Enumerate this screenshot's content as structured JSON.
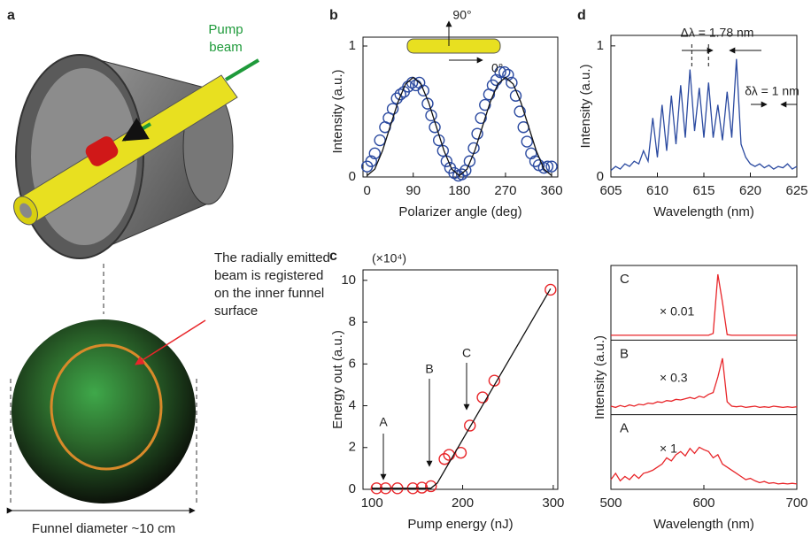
{
  "illustration": {
    "label": "a",
    "pump": "Pump",
    "beam": "beam",
    "note": [
      "The radially emitted",
      "beam is registered",
      "on the inner funnel",
      "surface"
    ],
    "diameter": "Funnel diameter ~10 cm"
  },
  "chart_data": [
    {
      "label": "b",
      "type": "scatter",
      "xlabel": "Polarizer angle (deg)",
      "ylabel": "Intensity (a.u.)",
      "xlim": [
        -8,
        372
      ],
      "ylim": [
        0,
        1
      ],
      "xticks": [
        0,
        90,
        180,
        270,
        360
      ],
      "yticks": [
        0,
        1
      ],
      "annotations": [
        "90°",
        "0°"
      ],
      "series": [
        {
          "mode": "markers",
          "color": "#2b4aa0",
          "x": [
            0,
            8,
            15,
            25,
            35,
            42,
            50,
            58,
            65,
            72,
            80,
            88,
            95,
            102,
            110,
            118,
            125,
            132,
            140,
            148,
            155,
            162,
            170,
            178,
            185,
            192,
            200,
            208,
            215,
            222,
            230,
            238,
            245,
            252,
            260,
            268,
            275,
            282,
            290,
            298,
            305,
            312,
            320,
            328,
            335,
            345,
            352,
            360
          ],
          "values": [
            0.08,
            0.12,
            0.18,
            0.28,
            0.38,
            0.45,
            0.52,
            0.6,
            0.63,
            0.65,
            0.69,
            0.72,
            0.7,
            0.72,
            0.66,
            0.56,
            0.47,
            0.38,
            0.28,
            0.2,
            0.12,
            0.07,
            0.03,
            0.01,
            0.02,
            0.05,
            0.12,
            0.22,
            0.33,
            0.45,
            0.55,
            0.63,
            0.7,
            0.74,
            0.8,
            0.8,
            0.78,
            0.72,
            0.62,
            0.5,
            0.38,
            0.27,
            0.18,
            0.12,
            0.09,
            0.07,
            0.08,
            0.08
          ]
        },
        {
          "mode": "lines",
          "color": "#111",
          "x": [
            0,
            15,
            30,
            45,
            60,
            75,
            90,
            105,
            120,
            135,
            150,
            165,
            180,
            195,
            210,
            225,
            240,
            255,
            270,
            285,
            300,
            315,
            330,
            345,
            360
          ],
          "values": [
            0.01,
            0.06,
            0.2,
            0.385,
            0.57,
            0.71,
            0.76,
            0.71,
            0.57,
            0.385,
            0.2,
            0.06,
            0.01,
            0.06,
            0.2,
            0.385,
            0.57,
            0.71,
            0.76,
            0.71,
            0.57,
            0.385,
            0.2,
            0.06,
            0.01
          ]
        }
      ]
    },
    {
      "label": "d",
      "type": "line",
      "xlabel": "Wavelength (nm)",
      "ylabel": "Intensity (a.u.)",
      "xlim": [
        605,
        625
      ],
      "ylim": [
        0,
        1.08
      ],
      "xticks": [
        605,
        610,
        615,
        620,
        625
      ],
      "yticks": [
        0,
        1
      ],
      "annotations": [
        "Δλ = 1.78 nm",
        "δλ = 1 nm"
      ],
      "series": [
        {
          "mode": "lines",
          "color": "#2b4aa0",
          "x": [
            605,
            605.5,
            606,
            606.5,
            607,
            607.5,
            608,
            608.5,
            609,
            609.5,
            610,
            610.5,
            611,
            611.5,
            612,
            612.5,
            613,
            613.5,
            614,
            614.5,
            615,
            615.5,
            616,
            616.5,
            617,
            617.5,
            618,
            618.5,
            619,
            619.5,
            620,
            620.5,
            621,
            621.5,
            622,
            622.5,
            623,
            623.5,
            624,
            624.5,
            625
          ],
          "values": [
            0.05,
            0.08,
            0.06,
            0.1,
            0.08,
            0.12,
            0.1,
            0.2,
            0.12,
            0.45,
            0.15,
            0.55,
            0.2,
            0.62,
            0.25,
            0.7,
            0.3,
            0.82,
            0.35,
            0.68,
            0.3,
            0.72,
            0.3,
            0.55,
            0.28,
            0.65,
            0.3,
            0.9,
            0.25,
            0.15,
            0.1,
            0.08,
            0.1,
            0.07,
            0.09,
            0.06,
            0.08,
            0.07,
            0.1,
            0.06,
            0.08
          ]
        }
      ]
    },
    {
      "label": "c",
      "type": "scatter",
      "xlabel": "Pump energy (nJ)",
      "ylabel": "Energy out (a.u.)",
      "xlim": [
        90,
        305
      ],
      "ylim": [
        0,
        10.5
      ],
      "xticks": [
        100,
        200,
        300
      ],
      "yticks": [
        0,
        2,
        4,
        6,
        8,
        10
      ],
      "annotations": [
        "(×10⁴)",
        "A",
        "B",
        "C"
      ],
      "series": [
        {
          "mode": "markers",
          "color": "#e8262a",
          "x": [
            105,
            115,
            128,
            145,
            155,
            165,
            180,
            185,
            198,
            208,
            222,
            235,
            297
          ],
          "values": [
            0.05,
            0.05,
            0.05,
            0.05,
            0.08,
            0.15,
            1.45,
            1.65,
            1.75,
            3.05,
            4.4,
            5.2,
            9.55
          ]
        },
        {
          "mode": "lines",
          "color": "#111",
          "x": [
            100,
            165,
            172,
            297
          ],
          "values": [
            0.05,
            0.05,
            0.3,
            9.6
          ]
        }
      ]
    },
    {
      "type": "line",
      "xlabel": "Wavelength (nm)",
      "ylabel": "Intensity (a.u.)",
      "xlim": [
        500,
        700
      ],
      "ylim": [
        0,
        1
      ],
      "xticks": [
        500,
        600,
        700
      ],
      "annotations": [
        "× 0.01",
        "× 0.3",
        "× 1"
      ],
      "series": [
        {
          "name": "C",
          "mode": "lines",
          "color": "#e8262a",
          "x": [
            500,
            505,
            510,
            515,
            520,
            525,
            530,
            535,
            540,
            545,
            550,
            555,
            560,
            565,
            570,
            575,
            580,
            585,
            590,
            595,
            600,
            605,
            610,
            615,
            620,
            625,
            630,
            635,
            640,
            645,
            650,
            655,
            660,
            665,
            670,
            675,
            680,
            685,
            690,
            695,
            700
          ],
          "values": [
            0.02,
            0.02,
            0.02,
            0.02,
            0.02,
            0.02,
            0.02,
            0.02,
            0.02,
            0.02,
            0.02,
            0.02,
            0.02,
            0.02,
            0.02,
            0.02,
            0.02,
            0.02,
            0.02,
            0.02,
            0.02,
            0.02,
            0.05,
            1.0,
            0.55,
            0.03,
            0.02,
            0.02,
            0.02,
            0.02,
            0.02,
            0.02,
            0.02,
            0.02,
            0.02,
            0.02,
            0.02,
            0.02,
            0.02,
            0.02,
            0.02
          ]
        },
        {
          "name": "B",
          "mode": "lines",
          "color": "#e8262a",
          "x": [
            500,
            505,
            510,
            515,
            520,
            525,
            530,
            535,
            540,
            545,
            550,
            555,
            560,
            565,
            570,
            575,
            580,
            585,
            590,
            595,
            600,
            605,
            610,
            615,
            620,
            625,
            630,
            635,
            640,
            645,
            650,
            655,
            660,
            665,
            670,
            675,
            680,
            685,
            690,
            695,
            700
          ],
          "values": [
            0.08,
            0.06,
            0.09,
            0.07,
            0.1,
            0.08,
            0.11,
            0.1,
            0.13,
            0.12,
            0.15,
            0.14,
            0.17,
            0.16,
            0.19,
            0.18,
            0.2,
            0.22,
            0.2,
            0.24,
            0.22,
            0.27,
            0.3,
            0.55,
            0.85,
            0.15,
            0.08,
            0.07,
            0.08,
            0.06,
            0.07,
            0.08,
            0.06,
            0.07,
            0.06,
            0.08,
            0.07,
            0.06,
            0.07,
            0.06,
            0.07
          ]
        },
        {
          "name": "A",
          "mode": "lines",
          "color": "#e8262a",
          "x": [
            500,
            505,
            510,
            515,
            520,
            525,
            530,
            535,
            540,
            545,
            550,
            555,
            560,
            565,
            570,
            575,
            580,
            585,
            590,
            595,
            600,
            605,
            610,
            615,
            620,
            625,
            630,
            635,
            640,
            645,
            650,
            655,
            660,
            665,
            670,
            675,
            680,
            685,
            690,
            695,
            700
          ],
          "values": [
            0.1,
            0.2,
            0.08,
            0.15,
            0.1,
            0.18,
            0.12,
            0.2,
            0.22,
            0.25,
            0.3,
            0.35,
            0.45,
            0.4,
            0.5,
            0.55,
            0.48,
            0.6,
            0.52,
            0.62,
            0.58,
            0.55,
            0.45,
            0.5,
            0.35,
            0.3,
            0.25,
            0.2,
            0.15,
            0.1,
            0.12,
            0.08,
            0.05,
            0.07,
            0.04,
            0.05,
            0.03,
            0.04,
            0.03,
            0.04,
            0.03
          ]
        }
      ]
    }
  ]
}
